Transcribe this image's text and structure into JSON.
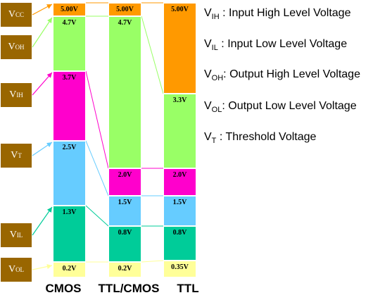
{
  "chart_data": {
    "type": "diagram",
    "columns": [
      {
        "name": "CMOS",
        "segments": [
          {
            "label": "5.00V",
            "color": "#ff9900"
          },
          {
            "label": "4.7V",
            "color": "#99ff66"
          },
          {
            "label": "3.7V",
            "color": "#ff00cc"
          },
          {
            "label": "2.5V",
            "color": "#66ccff"
          },
          {
            "label": "1.3V",
            "color": "#00cc99"
          },
          {
            "label": "0.2V",
            "color": "#ffff99"
          }
        ]
      },
      {
        "name": "TTL/CMOS",
        "segments": [
          {
            "label": "5.00V",
            "color": "#ff9900"
          },
          {
            "label": "4.7V",
            "color": "#99ff66"
          },
          {
            "label": "2.0V",
            "color": "#ff00cc"
          },
          {
            "label": "1.5V",
            "color": "#66ccff"
          },
          {
            "label": "0.8V",
            "color": "#00cc99"
          },
          {
            "label": "0.2V",
            "color": "#ffff99"
          }
        ]
      },
      {
        "name": "TTL",
        "segments": [
          {
            "label": "5.00V",
            "color": "#ff9900"
          },
          {
            "label": "3.3V",
            "color": "#99ff66"
          },
          {
            "label": "2.0V",
            "color": "#ff00cc"
          },
          {
            "label": "1.5V",
            "color": "#66ccff"
          },
          {
            "label": "0.8V",
            "color": "#00cc99"
          },
          {
            "label": "0.35V",
            "color": "#ffff99"
          }
        ]
      }
    ],
    "tags": [
      {
        "main": "V",
        "sub": "CC"
      },
      {
        "main": "V",
        "sub": "OH"
      },
      {
        "main": "V",
        "sub": "IH"
      },
      {
        "main": "V",
        "sub": "T"
      },
      {
        "main": "V",
        "sub": "IL"
      },
      {
        "main": "V",
        "sub": "OL"
      }
    ],
    "legend": [
      {
        "main": "V",
        "sub": "IH",
        "text": " : Input High Level Voltage"
      },
      {
        "main": "V",
        "sub": "IL",
        "text": " : Input Low Level Voltage"
      },
      {
        "main": "V",
        "sub": "OH",
        "text": ": Output High Level Voltage"
      },
      {
        "main": "V",
        "sub": "OL",
        "text": ": Output Low Level Voltage"
      },
      {
        "main": "V",
        "sub": "T",
        "text": " : Threshold Voltage"
      }
    ]
  }
}
